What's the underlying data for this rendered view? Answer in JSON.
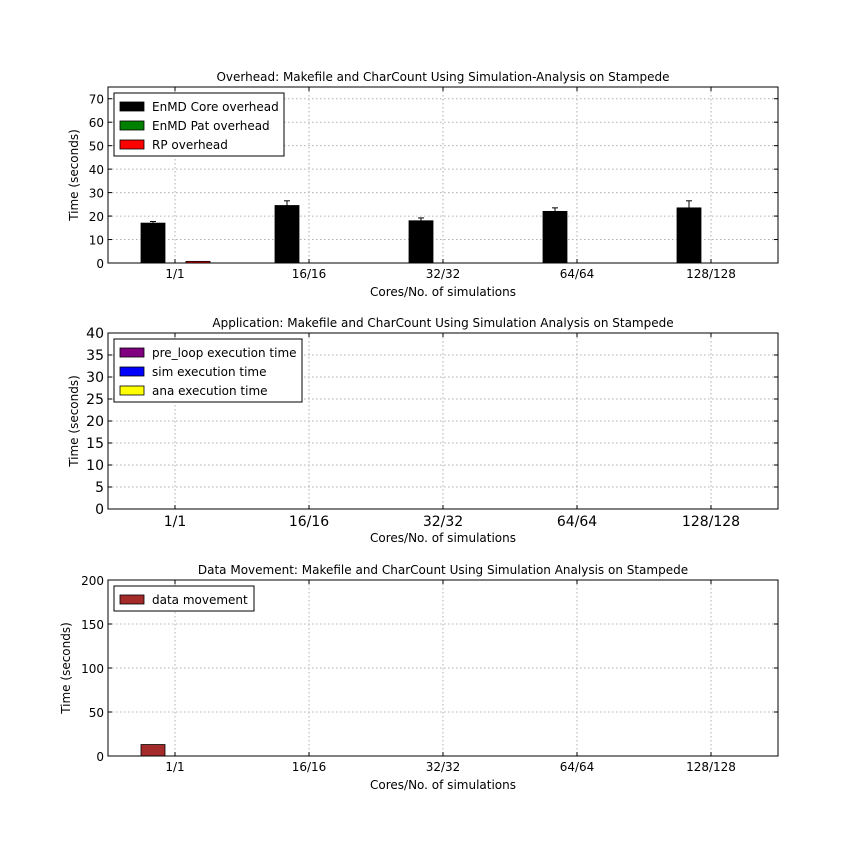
{
  "chart_data": [
    {
      "type": "bar",
      "title": "Overhead: Makefile and CharCount Using Simulation-Analysis on Stampede",
      "xlabel": "Cores/No. of simulations",
      "ylabel": "Time (seconds)",
      "categories": [
        "1/1",
        "16/16",
        "32/32",
        "64/64",
        "128/128"
      ],
      "ylim": [
        0,
        75
      ],
      "yticks": [
        0,
        10,
        20,
        30,
        40,
        50,
        60,
        70
      ],
      "tick_font": "normal",
      "grid": true,
      "legend_position": "top-left",
      "series": [
        {
          "name": "EnMD Core overhead",
          "color": "#000000",
          "values": [
            17,
            24.5,
            18,
            22,
            23.5
          ],
          "errors": [
            0.7,
            2,
            1.2,
            1.5,
            3
          ]
        },
        {
          "name": "EnMD Pat overhead",
          "color": "#008000",
          "values": [
            0,
            0,
            0,
            0,
            0
          ],
          "errors": [
            0,
            0,
            0,
            0,
            0
          ]
        },
        {
          "name": "RP overhead",
          "color": "#ff0000",
          "values": [
            0.7,
            0,
            0,
            0,
            0
          ],
          "errors": [
            0,
            0,
            0,
            0,
            0
          ]
        }
      ]
    },
    {
      "type": "bar",
      "title": "Application: Makefile and CharCount Using Simulation Analysis on Stampede",
      "xlabel": "Cores/No. of simulations",
      "ylabel": "Time (seconds)",
      "categories": [
        "1/1",
        "16/16",
        "32/32",
        "64/64",
        "128/128"
      ],
      "ylim": [
        0,
        40
      ],
      "yticks": [
        0,
        5,
        10,
        15,
        20,
        25,
        30,
        35,
        40
      ],
      "tick_font": "large",
      "grid": true,
      "legend_position": "top-left",
      "series": [
        {
          "name": "pre_loop execution time",
          "color": "#800080",
          "values": [
            0,
            0,
            0,
            0,
            0
          ]
        },
        {
          "name": "sim execution time",
          "color": "#0000ff",
          "values": [
            0,
            0,
            0,
            0,
            0
          ]
        },
        {
          "name": "ana execution time",
          "color": "#ffff00",
          "values": [
            0,
            0,
            0,
            0,
            0
          ]
        }
      ]
    },
    {
      "type": "bar",
      "title": "Data Movement: Makefile and CharCount Using Simulation Analysis on Stampede",
      "xlabel": "Cores/No. of simulations",
      "ylabel": "Time (seconds)",
      "categories": [
        "1/1",
        "16/16",
        "32/32",
        "64/64",
        "128/128"
      ],
      "ylim": [
        0,
        200
      ],
      "yticks": [
        0,
        50,
        100,
        150,
        200
      ],
      "tick_font": "normal",
      "grid": true,
      "legend_position": "top-left",
      "series": [
        {
          "name": "data movement",
          "color": "#a52a2a",
          "values": [
            13,
            0,
            0,
            0,
            0
          ]
        }
      ]
    }
  ]
}
